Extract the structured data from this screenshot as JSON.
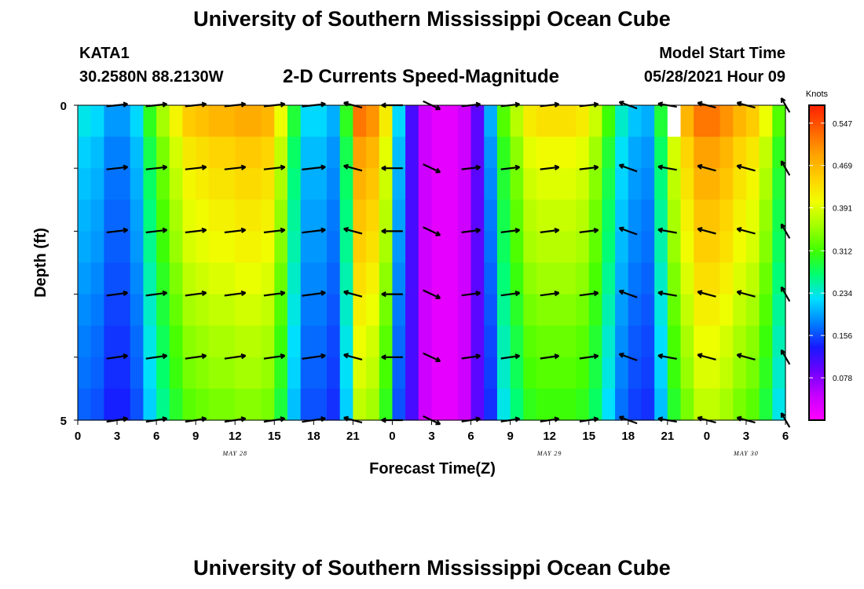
{
  "header": {
    "title": "University of Southern Mississippi Ocean Cube",
    "station": "KATA1",
    "coords": "30.2580N  88.2130W",
    "subtitle": "2-D Currents Speed-Magnitude",
    "model_start_label": "Model Start Time",
    "model_start_value": "05/28/2021 Hour 09"
  },
  "footer": {
    "title": "University of Southern Mississippi Ocean Cube"
  },
  "chart_data": {
    "type": "heatmap",
    "title": "2-D Currents Speed-Magnitude",
    "xlabel": "Forecast Time(Z)",
    "ylabel": "Depth (ft)",
    "x_range_hours": [
      0,
      54
    ],
    "ylim": [
      0,
      5
    ],
    "x_ticks": [
      "0",
      "3",
      "6",
      "9",
      "12",
      "15",
      "18",
      "21",
      "0",
      "3",
      "6",
      "9",
      "12",
      "15",
      "18",
      "21",
      "0",
      "3",
      "6"
    ],
    "y_ticks": [
      "0",
      "5"
    ],
    "date_labels": [
      {
        "label": "MAY 28",
        "hour": 12
      },
      {
        "label": "MAY 29",
        "hour": 36
      },
      {
        "label": "MAY 30",
        "hour": 51
      }
    ],
    "colorbar": {
      "label": "Knots",
      "ticks": [
        "0.547",
        "0.469",
        "0.391",
        "0.312",
        "0.234",
        "0.156",
        "0.078"
      ],
      "min": 0.0,
      "max": 0.58,
      "colors": [
        "#ff00ff",
        "#c800ff",
        "#7000ff",
        "#1818ff",
        "#0080ff",
        "#00e0ff",
        "#00ff70",
        "#40ff00",
        "#a0ff00",
        "#f0ff00",
        "#ffd000",
        "#ffa000",
        "#ff6000",
        "#ff2000"
      ]
    },
    "speed_by_hour": [
      0.23,
      0.22,
      0.19,
      0.19,
      0.22,
      0.3,
      0.36,
      0.41,
      0.45,
      0.46,
      0.47,
      0.47,
      0.48,
      0.48,
      0.47,
      0.4,
      0.29,
      0.22,
      0.22,
      0.2,
      0.3,
      0.52,
      0.5,
      0.42,
      0.22,
      0.11,
      0.04,
      0.02,
      0.02,
      0.04,
      0.1,
      0.2,
      0.32,
      0.37,
      0.42,
      0.43,
      0.43,
      0.43,
      0.42,
      0.38,
      0.31,
      0.24,
      0.21,
      0.2,
      0.29,
      0.41,
      0.47,
      0.52,
      0.52,
      0.5,
      0.47,
      0.45,
      0.4,
      0.32,
      0.15
    ],
    "depth_factors": [
      1.0,
      0.94,
      0.91,
      0.88,
      0.86,
      0.83,
      0.8,
      0.77,
      0.75,
      0.72
    ],
    "missing_cells": [
      {
        "hour": 45,
        "row": 0
      }
    ],
    "vectors": {
      "hours": [
        3,
        6,
        9,
        12,
        15,
        18,
        21,
        24,
        27,
        30,
        33,
        36,
        39,
        42,
        45,
        48,
        51,
        54
      ],
      "depths": [
        0,
        1,
        2,
        3,
        4,
        5
      ],
      "angles_deg": [
        null,
        null,
        null,
        null,
        null,
        null,
        165,
        180,
        -25,
        null,
        null,
        null,
        null,
        160,
        170,
        165,
        165,
        120
      ],
      "length_factor": [
        0.9,
        0.9,
        0.9,
        0.9,
        0.9,
        1.0,
        0.8,
        0.9,
        0.8,
        0.8,
        0.8,
        0.8,
        0.8,
        0.8,
        0.8,
        0.8,
        0.8,
        0.7
      ]
    }
  }
}
